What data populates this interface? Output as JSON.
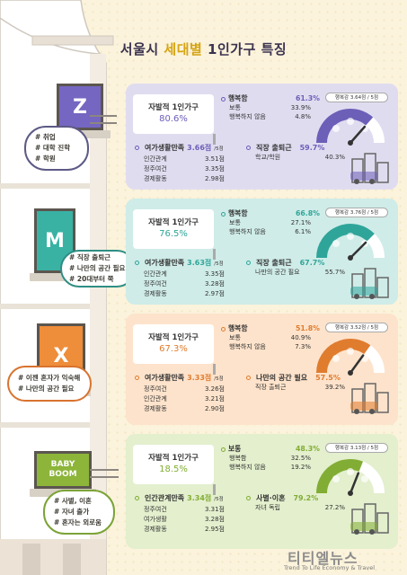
{
  "title": {
    "part1": "서울시",
    "part2": "세대별",
    "part3": "1인가구 특징"
  },
  "colors": {
    "z": "#6c5fb8",
    "m": "#2fa59a",
    "x": "#e07c2e",
    "b": "#82ad34"
  },
  "windows": [
    {
      "label": "Z"
    },
    {
      "label": "M"
    },
    {
      "label": "X"
    },
    {
      "label": "BABY BOOM"
    }
  ],
  "tags": [
    {
      "lines": [
        "# 취업",
        "# 대학 진학",
        "# 학원"
      ]
    },
    {
      "lines": [
        "# 직장 출퇴근",
        "# 나만의 공간 필요",
        "# 20대부터 쭉"
      ]
    },
    {
      "lines": [
        "# 이젠 혼자가 익숙해",
        "# 나만의 공간 필요"
      ]
    },
    {
      "lines": [
        "# 사별, 이혼",
        "# 자녀 출가",
        "# 혼자는 외로움"
      ]
    }
  ],
  "cards": [
    {
      "voluntary": {
        "label": "자발적 1인가구",
        "pct": "80.6%"
      },
      "happiness": {
        "label": "행복함",
        "value": "61.3%",
        "rows": [
          {
            "k": "보통",
            "v": "33.9%"
          },
          {
            "k": "행복하지 않음",
            "v": "4.8%"
          }
        ]
      },
      "badge": "행복감 3.64점 / 5점",
      "gauge_level": 0.73,
      "satisfaction": {
        "label": "여가생활만족",
        "value": "3.66점",
        "unit": "/5점",
        "rows": [
          {
            "k": "인간관계",
            "v": "3.51점"
          },
          {
            "k": "정주여건",
            "v": "3.35점"
          },
          {
            "k": "경제활동",
            "v": "2.98점"
          }
        ]
      },
      "reason": {
        "label": "직장 출퇴근",
        "value": "59.7%",
        "rows": [
          {
            "k": "학교/학원",
            "v": "40.3%"
          }
        ]
      }
    },
    {
      "voluntary": {
        "label": "자발적 1인가구",
        "pct": "76.5%"
      },
      "happiness": {
        "label": "행복함",
        "value": "66.8%",
        "rows": [
          {
            "k": "보통",
            "v": "27.1%"
          },
          {
            "k": "행복하지 않음",
            "v": "6.1%"
          }
        ]
      },
      "badge": "행복감 3.76점 / 5점",
      "gauge_level": 0.75,
      "satisfaction": {
        "label": "여가생활만족",
        "value": "3.63점",
        "unit": "/5점",
        "rows": [
          {
            "k": "인간관계",
            "v": "3.35점"
          },
          {
            "k": "정주여건",
            "v": "3.28점"
          },
          {
            "k": "경제활동",
            "v": "2.97점"
          }
        ]
      },
      "reason": {
        "label": "직장 출퇴근",
        "value": "67.7%",
        "rows": [
          {
            "k": "나만의 공간 필요",
            "v": "55.7%"
          }
        ]
      }
    },
    {
      "voluntary": {
        "label": "자발적 1인가구",
        "pct": "67.3%"
      },
      "happiness": {
        "label": "행복함",
        "value": "51.8%",
        "rows": [
          {
            "k": "보통",
            "v": "40.9%"
          },
          {
            "k": "행복하지 않음",
            "v": "7.3%"
          }
        ]
      },
      "badge": "행복감 3.52점 / 5점",
      "gauge_level": 0.7,
      "satisfaction": {
        "label": "여가생활만족",
        "value": "3.33점",
        "unit": "/5점",
        "rows": [
          {
            "k": "정주여건",
            "v": "3.26점"
          },
          {
            "k": "인간관계",
            "v": "3.21점"
          },
          {
            "k": "경제활동",
            "v": "2.90점"
          }
        ]
      },
      "reason": {
        "label": "나만의 공간 필요",
        "value": "57.5%",
        "rows": [
          {
            "k": "직장 출퇴근",
            "v": "39.2%"
          }
        ]
      }
    },
    {
      "voluntary": {
        "label": "자발적 1인가구",
        "pct": "18.5%"
      },
      "happiness": {
        "label": "보통",
        "value": "48.3%",
        "rows": [
          {
            "k": "행복함",
            "v": "32.5%"
          },
          {
            "k": "행복하지 않음",
            "v": "19.2%"
          }
        ]
      },
      "badge": "행복감 3.13점 / 5점",
      "gauge_level": 0.62,
      "satisfaction": {
        "label": "인간관계만족",
        "value": "3.34점",
        "unit": "/5점",
        "rows": [
          {
            "k": "정주여건",
            "v": "3.31점"
          },
          {
            "k": "여가생활",
            "v": "3.28점"
          },
          {
            "k": "경제활동",
            "v": "2.95점"
          }
        ]
      },
      "reason": {
        "label": "사별·이혼",
        "value": "79.2%",
        "rows": [
          {
            "k": "자녀 독립",
            "v": "27.2%"
          }
        ]
      }
    }
  ],
  "watermark": {
    "main": "티티엘뉴스",
    "sub": "Trend To Life Economy & Travel"
  }
}
